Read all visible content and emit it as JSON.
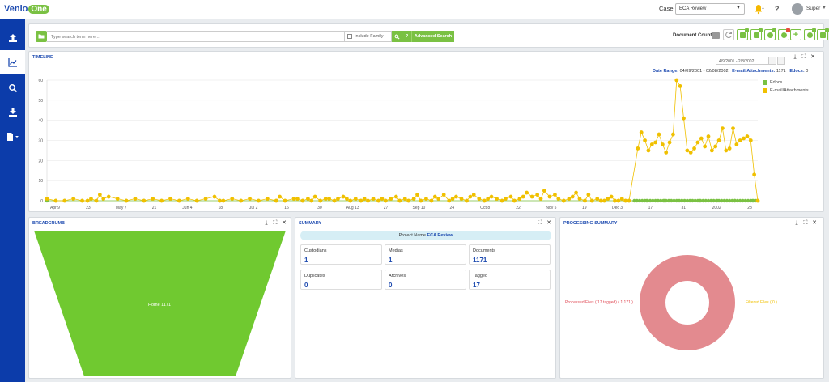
{
  "header": {
    "logo_venio": "Venio",
    "logo_one": "One",
    "case_label": "Case:",
    "case_value": "ECA Review",
    "user_name": "Super"
  },
  "search": {
    "placeholder": "Type search term here...",
    "include_family": "Include Family",
    "advanced_search": "Advanced Search",
    "document_count_label": "Document Count"
  },
  "timeline": {
    "title": "TIMELINE",
    "date_input": "4/9/2001 - 2/8/2002",
    "date_range_label": "Date Range:",
    "date_range_value": "04/09/2001 - 02/08/2002",
    "email_label": "E-mail/Attachments:",
    "email_count": "1171",
    "edocs_label": "Edocs:",
    "edocs_count": "0"
  },
  "chart_data": {
    "type": "line",
    "ylim": [
      0,
      60
    ],
    "yticks": [
      "0",
      "10",
      "20",
      "30",
      "40",
      "50",
      "60"
    ],
    "xtick_labels": [
      "Apr 9",
      "23",
      "May 7",
      "21",
      "Jun 4",
      "18",
      "Jul 2",
      "16",
      "30",
      "Aug 13",
      "27",
      "Sep 10",
      "24",
      "Oct 8",
      "22",
      "Nov 5",
      "19",
      "Dec 3",
      "17",
      "31",
      "2002",
      "28"
    ],
    "legend": [
      "Edocs",
      "E-mail/Attachments"
    ],
    "series_colors": {
      "Edocs": "#7ac143",
      "E-mail/Attachments": "#f0c000"
    },
    "email_points": [
      [
        0,
        1
      ],
      [
        5,
        0
      ],
      [
        10,
        0
      ],
      [
        15,
        1
      ],
      [
        20,
        0
      ],
      [
        23,
        0
      ],
      [
        25,
        1
      ],
      [
        28,
        0
      ],
      [
        30,
        3
      ],
      [
        32,
        1
      ],
      [
        35,
        2
      ],
      [
        40,
        1
      ],
      [
        45,
        0
      ],
      [
        50,
        1
      ],
      [
        55,
        0
      ],
      [
        60,
        1
      ],
      [
        65,
        0
      ],
      [
        70,
        1
      ],
      [
        75,
        0
      ],
      [
        80,
        1
      ],
      [
        85,
        0
      ],
      [
        90,
        1
      ],
      [
        95,
        2
      ],
      [
        98,
        0
      ],
      [
        100,
        0
      ],
      [
        105,
        1
      ],
      [
        110,
        0
      ],
      [
        115,
        1
      ],
      [
        120,
        0
      ],
      [
        125,
        1
      ],
      [
        130,
        0
      ],
      [
        132,
        2
      ],
      [
        135,
        0
      ],
      [
        140,
        1
      ],
      [
        142,
        1
      ],
      [
        145,
        0
      ],
      [
        148,
        1
      ],
      [
        150,
        0
      ],
      [
        152,
        2
      ],
      [
        155,
        0
      ],
      [
        158,
        1
      ],
      [
        160,
        1
      ],
      [
        163,
        0
      ],
      [
        165,
        1
      ],
      [
        168,
        2
      ],
      [
        170,
        1
      ],
      [
        172,
        0
      ],
      [
        175,
        1
      ],
      [
        178,
        0
      ],
      [
        180,
        1
      ],
      [
        182,
        0
      ],
      [
        185,
        1
      ],
      [
        188,
        0
      ],
      [
        190,
        1
      ],
      [
        192,
        0
      ],
      [
        195,
        1
      ],
      [
        198,
        2
      ],
      [
        200,
        0
      ],
      [
        203,
        1
      ],
      [
        205,
        0
      ],
      [
        208,
        1
      ],
      [
        210,
        3
      ],
      [
        212,
        0
      ],
      [
        215,
        1
      ],
      [
        218,
        0
      ],
      [
        220,
        2
      ],
      [
        222,
        1
      ],
      [
        225,
        3
      ],
      [
        228,
        0
      ],
      [
        230,
        1
      ],
      [
        232,
        2
      ],
      [
        235,
        1
      ],
      [
        238,
        0
      ],
      [
        240,
        2
      ],
      [
        242,
        3
      ],
      [
        245,
        1
      ],
      [
        248,
        0
      ],
      [
        250,
        1
      ],
      [
        252,
        2
      ],
      [
        255,
        1
      ],
      [
        258,
        0
      ],
      [
        260,
        1
      ],
      [
        263,
        2
      ],
      [
        265,
        0
      ],
      [
        268,
        1
      ],
      [
        270,
        2
      ],
      [
        272,
        4
      ],
      [
        275,
        2
      ],
      [
        278,
        3
      ],
      [
        280,
        1
      ],
      [
        282,
        5
      ],
      [
        285,
        2
      ],
      [
        288,
        3
      ],
      [
        290,
        1
      ],
      [
        293,
        0
      ],
      [
        296,
        1
      ],
      [
        298,
        2
      ],
      [
        300,
        4
      ],
      [
        302,
        1
      ],
      [
        305,
        0
      ],
      [
        307,
        3
      ],
      [
        309,
        0
      ],
      [
        312,
        1
      ],
      [
        314,
        0
      ],
      [
        316,
        0
      ],
      [
        318,
        1
      ],
      [
        320,
        2
      ],
      [
        322,
        0
      ],
      [
        324,
        0
      ],
      [
        326,
        1
      ],
      [
        328,
        0
      ],
      [
        330,
        0
      ],
      [
        335,
        26
      ],
      [
        337,
        34
      ],
      [
        339,
        30
      ],
      [
        341,
        25
      ],
      [
        343,
        28
      ],
      [
        345,
        29
      ],
      [
        347,
        33
      ],
      [
        349,
        28
      ],
      [
        351,
        24
      ],
      [
        353,
        29
      ],
      [
        355,
        33
      ],
      [
        357,
        60
      ],
      [
        359,
        57
      ],
      [
        361,
        41
      ],
      [
        363,
        25
      ],
      [
        365,
        24
      ],
      [
        367,
        26
      ],
      [
        369,
        29
      ],
      [
        371,
        31
      ],
      [
        373,
        27
      ],
      [
        375,
        32
      ],
      [
        377,
        25
      ],
      [
        379,
        27
      ],
      [
        381,
        30
      ],
      [
        383,
        36
      ],
      [
        385,
        25
      ],
      [
        387,
        26
      ],
      [
        389,
        36
      ],
      [
        391,
        28
      ],
      [
        393,
        30
      ],
      [
        395,
        31
      ],
      [
        397,
        32
      ],
      [
        399,
        30
      ],
      [
        401,
        13
      ],
      [
        403,
        0
      ]
    ],
    "edocs_segments": [
      [
        0,
        0
      ],
      [
        5,
        0
      ],
      [
        10,
        0
      ],
      [
        20,
        0
      ],
      [
        23,
        0
      ],
      [
        28,
        0
      ],
      [
        45,
        0
      ],
      [
        55,
        0
      ],
      [
        65,
        0
      ],
      [
        75,
        0
      ],
      [
        85,
        0
      ],
      [
        98,
        0
      ],
      [
        100,
        0
      ],
      [
        110,
        0
      ],
      [
        120,
        0
      ],
      [
        130,
        0
      ],
      [
        135,
        0
      ],
      [
        145,
        0
      ],
      [
        150,
        0
      ],
      [
        155,
        0
      ],
      [
        163,
        0
      ],
      [
        172,
        0
      ],
      [
        178,
        0
      ],
      [
        182,
        0
      ],
      [
        188,
        0
      ],
      [
        192,
        0
      ],
      [
        200,
        0
      ],
      [
        205,
        0
      ],
      [
        212,
        0
      ],
      [
        218,
        0
      ],
      [
        228,
        0
      ],
      [
        238,
        0
      ],
      [
        248,
        0
      ],
      [
        258,
        0
      ],
      [
        265,
        0
      ],
      [
        293,
        0
      ],
      [
        305,
        0
      ],
      [
        309,
        0
      ],
      [
        314,
        0
      ],
      [
        316,
        0
      ],
      [
        322,
        0
      ],
      [
        324,
        0
      ],
      [
        328,
        0
      ],
      [
        330,
        0
      ],
      [
        340,
        0
      ],
      [
        350,
        0
      ],
      [
        360,
        0
      ],
      [
        370,
        0
      ],
      [
        380,
        0
      ],
      [
        390,
        0
      ],
      [
        400,
        0
      ],
      [
        403,
        0
      ]
    ]
  },
  "breadcrumb": {
    "title": "BREADCRUMB",
    "funnel_label": "Home 1171",
    "funnel_color": "#70c930"
  },
  "summary": {
    "title": "SUMMARY",
    "project_label": "Project Name",
    "project_name": "ECA Review",
    "cards": [
      {
        "label": "Custodians",
        "value": "1"
      },
      {
        "label": "Medias",
        "value": "1"
      },
      {
        "label": "Documents",
        "value": "1171"
      },
      {
        "label": "Duplicates",
        "value": "0"
      },
      {
        "label": "Archives",
        "value": "0"
      },
      {
        "label": "Tagged",
        "value": "17"
      }
    ]
  },
  "processing": {
    "title": "PROCESSING SUMMARY",
    "processed_label": "Processed Files ( 17 tagged) ( 1,171 )",
    "filtered_label": "Filtered Files ( 0 )",
    "donut_color": "#e38a8f"
  }
}
